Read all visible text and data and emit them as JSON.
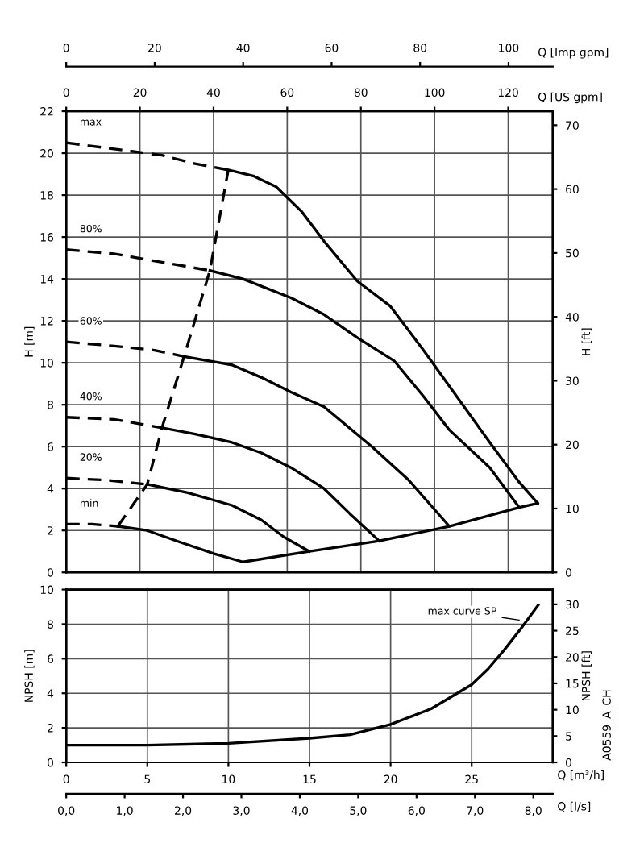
{
  "chart_data": [
    {
      "type": "line",
      "ylabel": "H [m]",
      "y2label": "H [ft]",
      "xlabel": "Q [US gpm]",
      "x2label": "Q [Imp gpm]",
      "xlim": [
        0,
        132.1
      ],
      "xticks": [
        0,
        20,
        40,
        60,
        80,
        100,
        120
      ],
      "ylim": [
        0,
        22
      ],
      "yticks": [
        0,
        2,
        4,
        6,
        8,
        10,
        12,
        14,
        16,
        18,
        20,
        22
      ],
      "y2lim": [
        0,
        72.18
      ],
      "y2ticks": [
        0,
        10,
        20,
        30,
        40,
        50,
        60,
        70
      ],
      "x2lim": [
        0,
        110.0
      ],
      "x2ticks": [
        0,
        20,
        40,
        60,
        80,
        100
      ],
      "grid": true,
      "legend": false,
      "marker": "none",
      "series": [
        {
          "name": "max",
          "color": "#000000",
          "line_style": "dashed",
          "x": [
            0,
            13,
            26,
            35,
            44
          ],
          "values": [
            20.5,
            20.2,
            19.9,
            19.5,
            19.2
          ]
        },
        {
          "color": "#000000",
          "line_style": "solid",
          "x": [
            44,
            51,
            57,
            64,
            70,
            79,
            88,
            97,
            106,
            115,
            123,
            128
          ],
          "values": [
            19.2,
            18.9,
            18.4,
            17.2,
            15.8,
            13.9,
            12.7,
            10.6,
            8.4,
            6.2,
            4.3,
            3.3
          ]
        },
        {
          "name": "80%",
          "color": "#000000",
          "line_style": "dashed",
          "x": [
            0,
            13,
            26,
            39
          ],
          "values": [
            15.4,
            15.2,
            14.8,
            14.4
          ]
        },
        {
          "color": "#000000",
          "line_style": "solid",
          "x": [
            39,
            48,
            61,
            70,
            79,
            89,
            97,
            104,
            115,
            123
          ],
          "values": [
            14.4,
            14.0,
            13.1,
            12.3,
            11.2,
            10.1,
            8.4,
            6.8,
            5.0,
            3.1
          ]
        },
        {
          "name": "60%",
          "color": "#000000",
          "line_style": "dashed",
          "x": [
            0,
            13,
            24,
            32
          ],
          "values": [
            11.0,
            10.8,
            10.6,
            10.3
          ]
        },
        {
          "color": "#000000",
          "line_style": "solid",
          "x": [
            32,
            45,
            53,
            61,
            70,
            83,
            93,
            104
          ],
          "values": [
            10.3,
            9.9,
            9.3,
            8.6,
            7.9,
            6.0,
            4.4,
            2.2
          ]
        },
        {
          "name": "40%",
          "color": "#000000",
          "line_style": "dashed",
          "x": [
            0,
            13,
            26
          ],
          "values": [
            7.4,
            7.3,
            6.9
          ]
        },
        {
          "color": "#000000",
          "line_style": "solid",
          "x": [
            26,
            35,
            45,
            53,
            61,
            70,
            77,
            85
          ],
          "values": [
            6.9,
            6.6,
            6.2,
            5.7,
            5.0,
            4.0,
            2.8,
            1.5
          ]
        },
        {
          "name": "20%",
          "color": "#000000",
          "line_style": "dashed",
          "x": [
            0,
            11,
            22
          ],
          "values": [
            4.5,
            4.4,
            4.2
          ]
        },
        {
          "color": "#000000",
          "line_style": "solid",
          "x": [
            22,
            33,
            45,
            53,
            59,
            66
          ],
          "values": [
            4.2,
            3.8,
            3.2,
            2.5,
            1.7,
            1.0
          ]
        },
        {
          "name": "min",
          "color": "#000000",
          "line_style": "dashed",
          "x": [
            0,
            7,
            14
          ],
          "values": [
            2.3,
            2.3,
            2.2
          ]
        },
        {
          "color": "#000000",
          "line_style": "solid",
          "x": [
            14,
            22,
            30,
            40,
            48,
            66,
            85,
            104,
            123,
            128
          ],
          "values": [
            2.2,
            2.0,
            1.5,
            0.9,
            0.5,
            1.0,
            1.5,
            2.2,
            3.1,
            3.3
          ]
        },
        {
          "color": "#000000",
          "line_style": "dashed",
          "x": [
            14,
            22,
            26,
            32,
            39,
            44
          ],
          "values": [
            2.2,
            4.2,
            6.9,
            10.3,
            14.4,
            19.2
          ]
        }
      ]
    },
    {
      "type": "line",
      "xlabel": "Q [m³/h]",
      "ylabel": "NPSH [m]",
      "y2label": "NPSH [ft]",
      "x2label": "Q [l/s]",
      "xlim": [
        0,
        30
      ],
      "xticks": [
        0,
        5,
        10,
        15,
        20,
        25
      ],
      "ylim": [
        0,
        10
      ],
      "yticks": [
        0,
        2,
        4,
        6,
        8,
        10
      ],
      "y2lim": [
        0,
        32.8
      ],
      "y2ticks": [
        0,
        5,
        10,
        15,
        20,
        25,
        30
      ],
      "x2lim": [
        0,
        8.333
      ],
      "x2ticks": [
        {
          "value": 0,
          "label": "0,0"
        },
        {
          "value": 1,
          "label": "1,0"
        },
        {
          "value": 2,
          "label": "2,0"
        },
        {
          "value": 3,
          "label": "3,0"
        },
        {
          "value": 4,
          "label": "4,0"
        },
        {
          "value": 5,
          "label": "5,0"
        },
        {
          "value": 6,
          "label": "6,0"
        },
        {
          "value": 7,
          "label": "7,0"
        },
        {
          "value": 8,
          "label": "8,0"
        }
      ],
      "grid": true,
      "legend": false,
      "marker": "none",
      "series": [
        {
          "color": "#000000",
          "line_style": "solid",
          "x": [
            0,
            5,
            10,
            15,
            17.5,
            20,
            22.5,
            25,
            26,
            27,
            28,
            29.1
          ],
          "values": [
            1.0,
            1.0,
            1.1,
            1.4,
            1.6,
            2.2,
            3.1,
            4.5,
            5.4,
            6.5,
            7.7,
            9.1
          ]
        }
      ],
      "annotations": [
        {
          "text": "max curve SP",
          "x": 28.2,
          "y": 8.2
        },
        "A0559_A_CH"
      ]
    }
  ]
}
